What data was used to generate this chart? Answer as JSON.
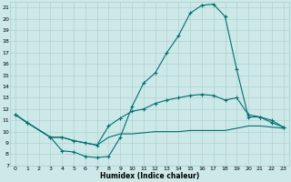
{
  "xlabel": "Humidex (Indice chaleur)",
  "bg_color": "#cce8e8",
  "grid_color": "#aacccc",
  "line_color": "#007070",
  "xlim": [
    0,
    23
  ],
  "ylim": [
    7,
    21.5
  ],
  "yticks": [
    7,
    8,
    9,
    10,
    11,
    12,
    13,
    14,
    15,
    16,
    17,
    18,
    19,
    20,
    21
  ],
  "xticks": [
    0,
    1,
    2,
    3,
    4,
    5,
    6,
    7,
    8,
    9,
    10,
    11,
    12,
    13,
    14,
    15,
    16,
    17,
    18,
    19,
    20,
    21,
    22,
    23
  ],
  "line1_x": [
    0,
    1,
    3,
    4,
    5,
    6,
    7,
    8,
    9,
    10,
    11,
    12,
    13,
    14,
    15,
    16,
    17,
    18,
    19,
    20,
    21,
    22,
    23
  ],
  "line1_y": [
    11.5,
    10.8,
    9.5,
    8.3,
    8.2,
    7.8,
    7.7,
    7.8,
    9.5,
    12.2,
    14.3,
    15.2,
    17.0,
    18.5,
    20.5,
    21.2,
    21.3,
    20.2,
    15.5,
    11.3,
    11.3,
    11.0,
    10.4
  ],
  "line2_x": [
    0,
    1,
    3,
    4,
    5,
    6,
    7,
    8,
    9,
    10,
    11,
    12,
    13,
    14,
    15,
    16,
    17,
    18,
    19,
    20,
    21,
    22,
    23
  ],
  "line2_y": [
    11.5,
    10.8,
    9.5,
    9.5,
    9.2,
    9.0,
    8.8,
    10.5,
    11.2,
    11.8,
    12.0,
    12.5,
    12.8,
    13.0,
    13.2,
    13.3,
    13.2,
    12.8,
    13.0,
    11.5,
    11.3,
    10.8,
    10.4
  ],
  "line3_x": [
    0,
    1,
    3,
    4,
    5,
    6,
    7,
    8,
    9,
    10,
    11,
    12,
    13,
    14,
    15,
    16,
    17,
    18,
    19,
    20,
    21,
    22,
    23
  ],
  "line3_y": [
    11.5,
    10.8,
    9.5,
    9.5,
    9.2,
    9.0,
    8.8,
    9.5,
    9.8,
    9.8,
    9.9,
    10.0,
    10.0,
    10.0,
    10.1,
    10.1,
    10.1,
    10.1,
    10.3,
    10.5,
    10.5,
    10.4,
    10.3
  ]
}
